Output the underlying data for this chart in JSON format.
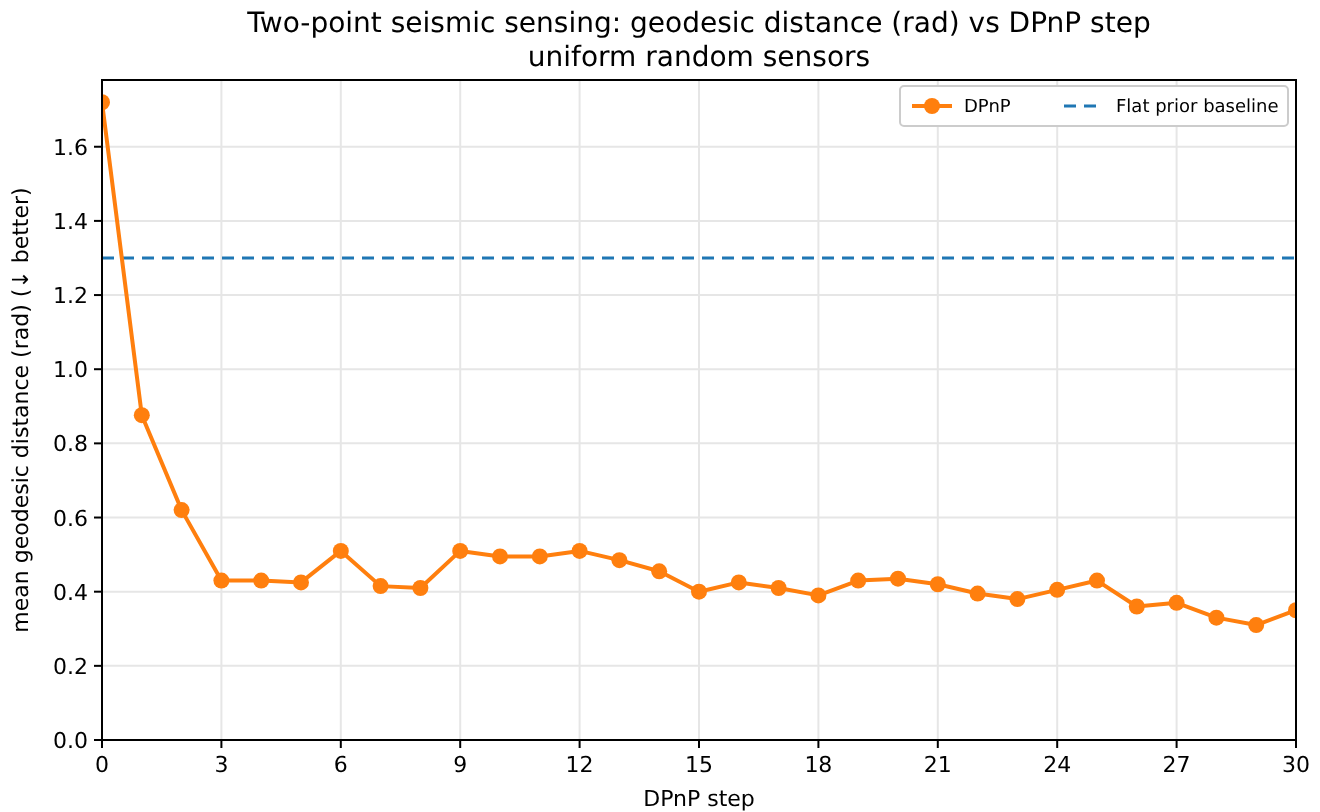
{
  "chart_data": {
    "type": "line",
    "title": "Two-point seismic sensing: geodesic distance (rad) vs DPnP step",
    "subtitle": "uniform random sensors",
    "xlabel": "DPnP step",
    "ylabel": "mean geodesic distance (rad)  (↓ better)",
    "x": [
      0,
      1,
      2,
      3,
      4,
      5,
      6,
      7,
      8,
      9,
      10,
      11,
      12,
      13,
      14,
      15,
      16,
      17,
      18,
      19,
      20,
      21,
      22,
      23,
      24,
      25,
      26,
      27,
      28,
      29,
      30
    ],
    "series": [
      {
        "name": "DPnP",
        "color": "#ff7f0e",
        "values": [
          1.72,
          0.876,
          0.62,
          0.43,
          0.43,
          0.425,
          0.51,
          0.415,
          0.41,
          0.51,
          0.495,
          0.495,
          0.51,
          0.485,
          0.455,
          0.4,
          0.425,
          0.41,
          0.39,
          0.43,
          0.435,
          0.42,
          0.395,
          0.38,
          0.405,
          0.43,
          0.36,
          0.37,
          0.33,
          0.31,
          0.35
        ]
      }
    ],
    "ref_lines": [
      {
        "axis": "y",
        "value": 1.3,
        "label": "Flat prior baseline",
        "color": "#1f77b4",
        "line_style": "dashed"
      }
    ],
    "xlim": [
      0,
      30
    ],
    "ylim": [
      0,
      1.78
    ],
    "xticks": [
      0,
      3,
      6,
      9,
      12,
      15,
      18,
      21,
      24,
      27,
      30
    ],
    "yticks": [
      {
        "value": 0,
        "label": "0.0"
      },
      {
        "value": 0.2,
        "label": "0.2"
      },
      {
        "value": 0.4,
        "label": "0.4"
      },
      {
        "value": 0.6,
        "label": "0.6"
      },
      {
        "value": 0.8,
        "label": "0.8"
      },
      {
        "value": 1,
        "label": "1.0"
      },
      {
        "value": 1.2,
        "label": "1.2"
      },
      {
        "value": 1.4,
        "label": "1.4"
      },
      {
        "value": 1.6,
        "label": "1.6"
      }
    ],
    "grid": true,
    "legend": "top right",
    "marker": "circle",
    "line_style": "solid"
  }
}
